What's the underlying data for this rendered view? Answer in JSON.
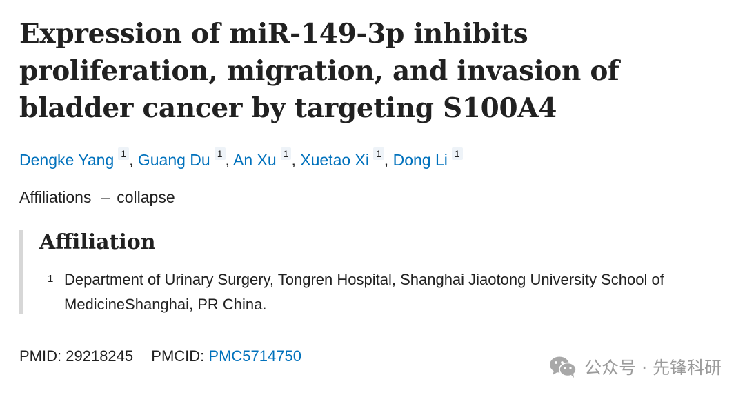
{
  "article": {
    "title": "Expression of miR-149-3p inhibits proliferation, migration, and invasion of bladder cancer by targeting S100A4",
    "authors": [
      {
        "name": "Dengke Yang",
        "aff": "1"
      },
      {
        "name": "Guang Du",
        "aff": "1"
      },
      {
        "name": "An Xu",
        "aff": "1"
      },
      {
        "name": "Xuetao Xi",
        "aff": "1"
      },
      {
        "name": "Dong Li",
        "aff": "1"
      }
    ],
    "author_separator": ", "
  },
  "affiliations_toggle": {
    "label": "Affiliations",
    "dash": "–",
    "action": "collapse"
  },
  "affiliation_box": {
    "heading": "Affiliation",
    "items": [
      {
        "number": "1",
        "text": "Department of Urinary Surgery, Tongren Hospital, Shanghai Jiaotong University School of MedicineShanghai, PR China."
      }
    ]
  },
  "ids": {
    "pmid_label": "PMID:",
    "pmid": "29218245",
    "pmcid_label": "PMCID:",
    "pmcid": "PMC5714750"
  },
  "watermark": {
    "icon": "wechat-icon",
    "text": "公众号 · 先锋科研"
  },
  "colors": {
    "link": "#0071bc",
    "text": "#212121",
    "border": "#d7d7d7",
    "watermark": "#9b9b9b"
  }
}
